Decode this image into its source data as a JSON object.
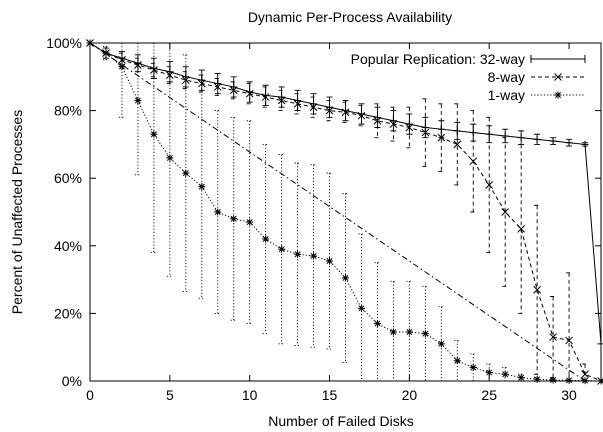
{
  "chart_data": {
    "type": "line",
    "title": "Dynamic Per-Process Availability",
    "xlabel": "Number of Failed Disks",
    "ylabel": "Percent of Unaffected Processes",
    "xlim": [
      0,
      32
    ],
    "ylim": [
      0,
      100
    ],
    "xticks": [
      0,
      5,
      10,
      15,
      20,
      25,
      30
    ],
    "xtick_labels": [
      "0",
      "5",
      "10",
      "15",
      "20",
      "25",
      "30"
    ],
    "yticks": [
      0,
      20,
      40,
      60,
      80,
      100
    ],
    "ytick_labels": [
      "0%",
      "20%",
      "40%",
      "60%",
      "80%",
      "100%"
    ],
    "grid": false,
    "legend_position": "top-right",
    "series": [
      {
        "name": "Popular Replication: 32-way",
        "style": "solid",
        "marker": "plus",
        "color": "#000000",
        "x": [
          0,
          1,
          2,
          3,
          4,
          5,
          6,
          7,
          8,
          9,
          10,
          11,
          12,
          13,
          14,
          15,
          16,
          17,
          18,
          19,
          20,
          21,
          22,
          23,
          24,
          25,
          26,
          27,
          28,
          29,
          30,
          31,
          32
        ],
        "y": [
          100,
          97,
          95.5,
          94,
          92.5,
          91.5,
          90,
          89,
          88,
          87,
          85.5,
          84.5,
          84,
          83,
          82,
          81,
          80,
          79,
          78,
          77,
          76,
          75,
          74.5,
          74,
          73.5,
          73,
          72.5,
          72,
          71.5,
          71,
          70.5,
          70,
          11
        ],
        "err": [
          0,
          1.5,
          2,
          2.5,
          3,
          3,
          3,
          3,
          3,
          3,
          3,
          3,
          3,
          3,
          3,
          3,
          3,
          3,
          3,
          3,
          3,
          3,
          2.5,
          2.5,
          2.5,
          2.5,
          2,
          2,
          1.5,
          1,
          1,
          0.5,
          0
        ]
      },
      {
        "name": "8-way",
        "style": "dashed",
        "marker": "x",
        "color": "#000000",
        "x": [
          0,
          1,
          2,
          3,
          4,
          5,
          6,
          7,
          8,
          9,
          10,
          11,
          12,
          13,
          14,
          15,
          16,
          17,
          18,
          19,
          20,
          21,
          22,
          23,
          24,
          25,
          26,
          27,
          28,
          29,
          30,
          31,
          32
        ],
        "y": [
          100,
          97,
          95,
          93.5,
          92,
          90.5,
          89,
          88,
          87,
          86,
          85,
          84,
          83,
          82,
          81,
          80,
          79.5,
          78.5,
          77,
          76,
          75,
          73.5,
          72,
          70,
          65,
          58,
          50,
          45,
          27,
          13,
          12,
          2,
          0
        ],
        "err": [
          0,
          1.5,
          2,
          2,
          2,
          2.5,
          2.5,
          2.5,
          2.5,
          2.5,
          3,
          3,
          3,
          3,
          3,
          3,
          3,
          3,
          5,
          5,
          6,
          10,
          10,
          12,
          15,
          20,
          22,
          25,
          25,
          12,
          20,
          3,
          0
        ]
      },
      {
        "name": "1-way",
        "style": "dotted",
        "marker": "star",
        "color": "#000000",
        "x": [
          0,
          1,
          2,
          3,
          4,
          5,
          6,
          7,
          8,
          9,
          10,
          11,
          12,
          13,
          14,
          15,
          16,
          17,
          18,
          19,
          20,
          21,
          22,
          23,
          24,
          25,
          26,
          27,
          28,
          29,
          30,
          31,
          32
        ],
        "y": [
          100,
          97,
          93,
          83,
          73,
          66,
          61.5,
          57.5,
          50,
          48,
          47,
          42,
          39,
          37.5,
          37,
          35.5,
          30.5,
          21.5,
          17,
          14.5,
          14.5,
          14,
          11,
          6,
          4,
          2.5,
          2,
          1,
          0.5,
          0.3,
          0.2,
          0.1,
          0
        ],
        "err": [
          0,
          2,
          15,
          22,
          35,
          35,
          35,
          33,
          30,
          30,
          30,
          28,
          28,
          27,
          27,
          26,
          25,
          22,
          18,
          15,
          15,
          14,
          11,
          6,
          4,
          2.5,
          2,
          1,
          0.5,
          0.3,
          0.2,
          0.1,
          0
        ]
      },
      {
        "name": "",
        "style": "dashdot",
        "marker": "none",
        "color": "#000000",
        "x": [
          0,
          31
        ],
        "y": [
          100,
          0
        ],
        "err": []
      }
    ]
  }
}
